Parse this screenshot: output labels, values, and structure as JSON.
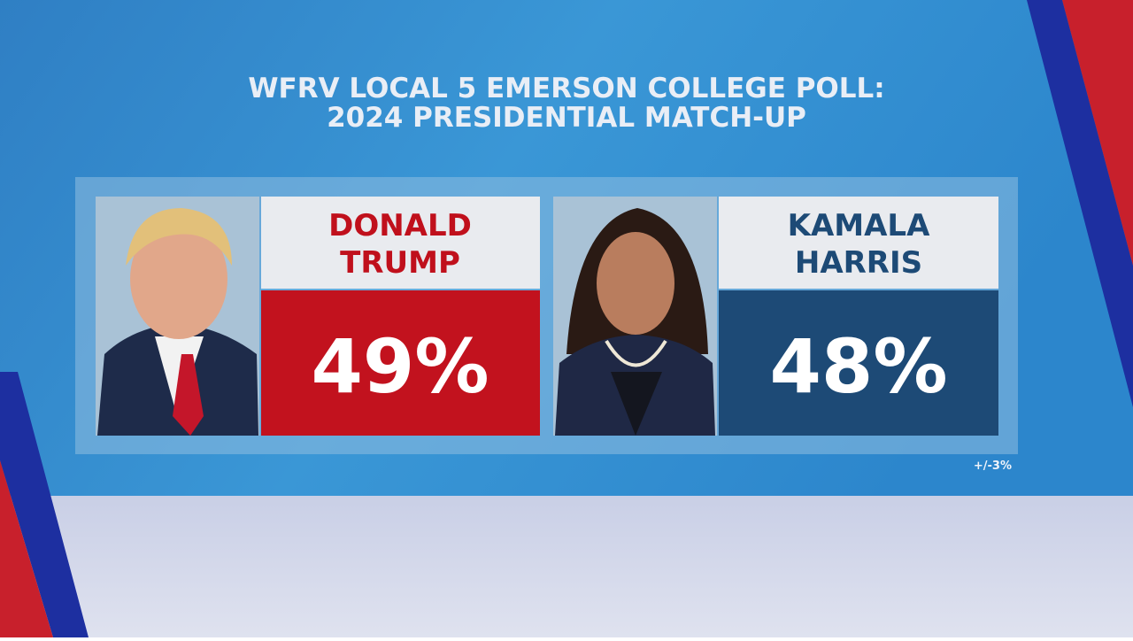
{
  "header": {
    "title_lines": [
      "WFRV LOCAL 5 EMERSON COLLEGE POLL:",
      "2024 PRESIDENTIAL MATCH-UP"
    ]
  },
  "candidates": [
    {
      "name_lines": [
        "DONALD",
        "TRUMP"
      ],
      "result": "49%"
    },
    {
      "name_lines": [
        "KAMALA",
        "HARRIS"
      ],
      "result": "48%"
    }
  ],
  "margin_of_error": "+/-3%"
}
